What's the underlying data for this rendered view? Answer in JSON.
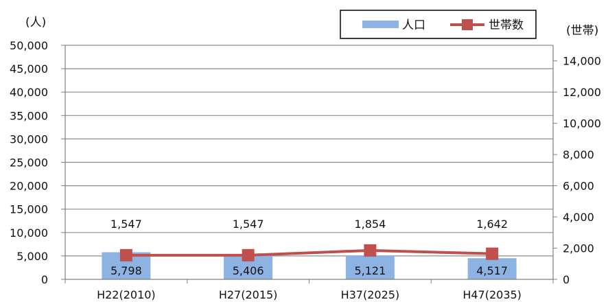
{
  "chart_data": {
    "type": "bar",
    "categories": [
      "H22(2010)",
      "H27(2015)",
      "H37(2025)",
      "H47(2035)"
    ],
    "series": [
      {
        "name": "人口",
        "type": "bar",
        "axis": "left",
        "values": [
          5798,
          5406,
          5121,
          4517
        ],
        "labels": [
          "5,798",
          "5,406",
          "5,121",
          "4,517"
        ],
        "color": "#8db3e2"
      },
      {
        "name": "世帯数",
        "type": "line",
        "axis": "right",
        "values": [
          1547,
          1547,
          1854,
          1642
        ],
        "labels": [
          "1,547",
          "1,547",
          "1,854",
          "1,642"
        ],
        "color": "#c0504d"
      }
    ],
    "y_left": {
      "unit": "(人)",
      "ylim": [
        0,
        50000
      ],
      "ticks": [
        "0",
        "5,000",
        "10,000",
        "15,000",
        "20,000",
        "25,000",
        "30,000",
        "35,000",
        "40,000",
        "45,000",
        "50,000"
      ]
    },
    "y_right": {
      "unit": "(世帯)",
      "ylim": [
        0,
        15000
      ],
      "ticks": [
        "0",
        "2,000",
        "4,000",
        "6,000",
        "8,000",
        "10,000",
        "12,000",
        "14,000"
      ]
    },
    "grid": true,
    "legend": "top-right"
  }
}
